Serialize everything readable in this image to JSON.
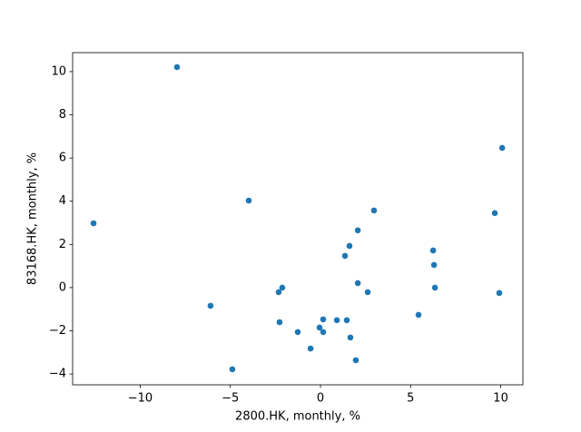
{
  "chart_data": {
    "type": "scatter",
    "xlabel": "2800.HK, monthly, %",
    "ylabel": "83168.HK, monthly, %",
    "color": "#1f77b4",
    "x": [
      -12.59,
      -7.96,
      -6.1,
      -4.89,
      -3.98,
      -2.32,
      -2.12,
      -2.27,
      -1.26,
      -0.55,
      -0.05,
      0.15,
      0.15,
      0.91,
      1.46,
      1.36,
      1.61,
      1.66,
      1.96,
      2.07,
      2.07,
      2.62,
      2.97,
      5.44,
      6.25,
      6.3,
      6.35,
      9.67,
      9.92,
      10.08
    ],
    "values": [
      2.98,
      10.21,
      -0.84,
      -3.78,
      4.03,
      -0.21,
      0,
      -1.6,
      -2.06,
      -2.82,
      -1.85,
      -1.47,
      -2.06,
      -1.51,
      -1.51,
      1.47,
      1.93,
      -2.31,
      -3.36,
      2.65,
      0.21,
      -0.21,
      3.57,
      -1.26,
      1.72,
      1.05,
      0,
      3.45,
      -0.25,
      6.47
    ],
    "xlim": [
      -13.75,
      11.23
    ],
    "ylim": [
      -4.5,
      10.88
    ],
    "xticks": [
      {
        "value": -10,
        "label": "−10"
      },
      {
        "value": -5,
        "label": "−5"
      },
      0,
      5,
      10
    ],
    "yticks": [
      {
        "value": -4,
        "label": "−4"
      },
      {
        "value": -2,
        "label": "−2"
      },
      0,
      2,
      4,
      6,
      8,
      10
    ],
    "grid": false
  }
}
